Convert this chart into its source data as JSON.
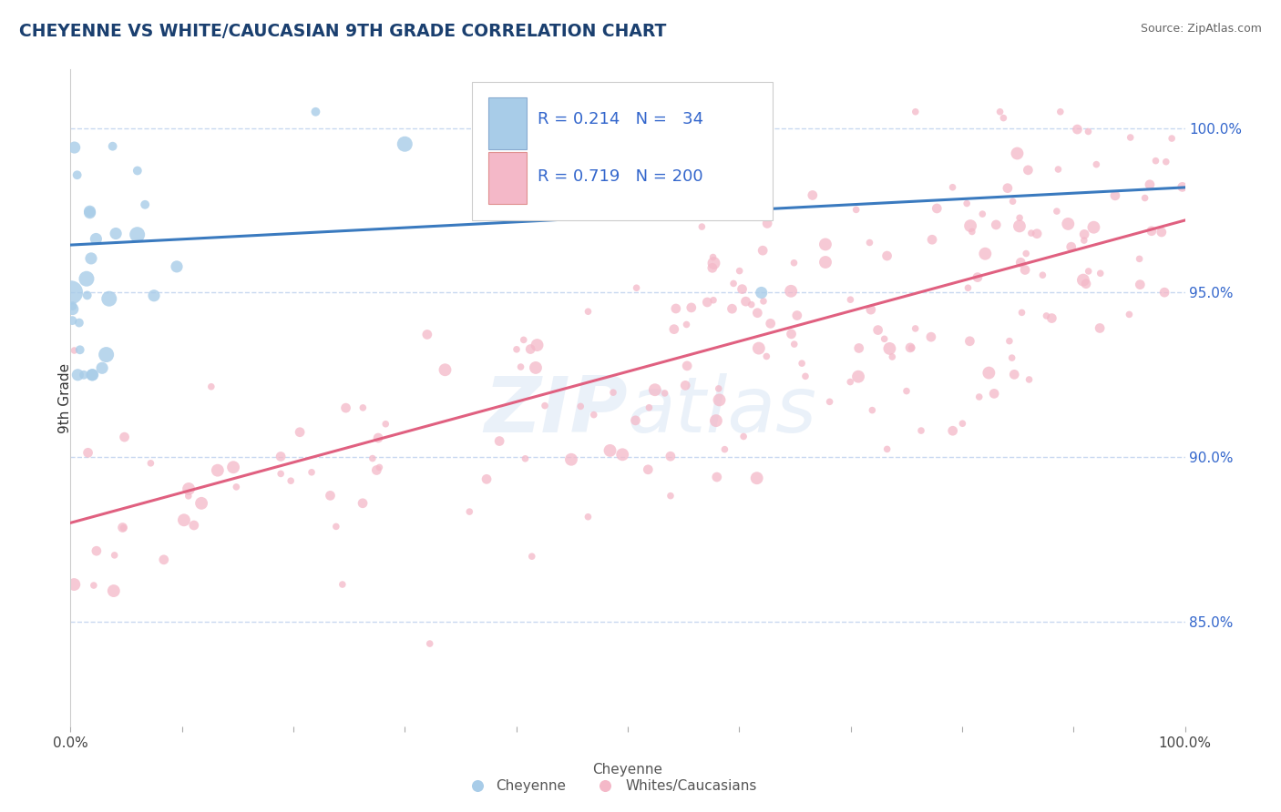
{
  "title": "CHEYENNE VS WHITE/CAUCASIAN 9TH GRADE CORRELATION CHART",
  "source": "Source: ZipAtlas.com",
  "ylabel": "9th Grade",
  "watermark": "ZIPatlas",
  "blue_R": 0.214,
  "blue_N": 34,
  "pink_R": 0.719,
  "pink_N": 200,
  "blue_color": "#a8cce8",
  "pink_color": "#f4b8c8",
  "blue_line_color": "#3a7abf",
  "pink_line_color": "#e06080",
  "xlim": [
    0.0,
    1.0
  ],
  "ylim": [
    0.818,
    1.018
  ],
  "right_yticks": [
    0.85,
    0.9,
    0.95,
    1.0
  ],
  "right_yticklabels": [
    "85.0%",
    "90.0%",
    "95.0%",
    "100.0%"
  ],
  "title_color": "#1a3f6f",
  "legend_text_color": "#3366cc",
  "grid_color": "#c8d8f0",
  "blue_seed": 7,
  "pink_seed": 99
}
